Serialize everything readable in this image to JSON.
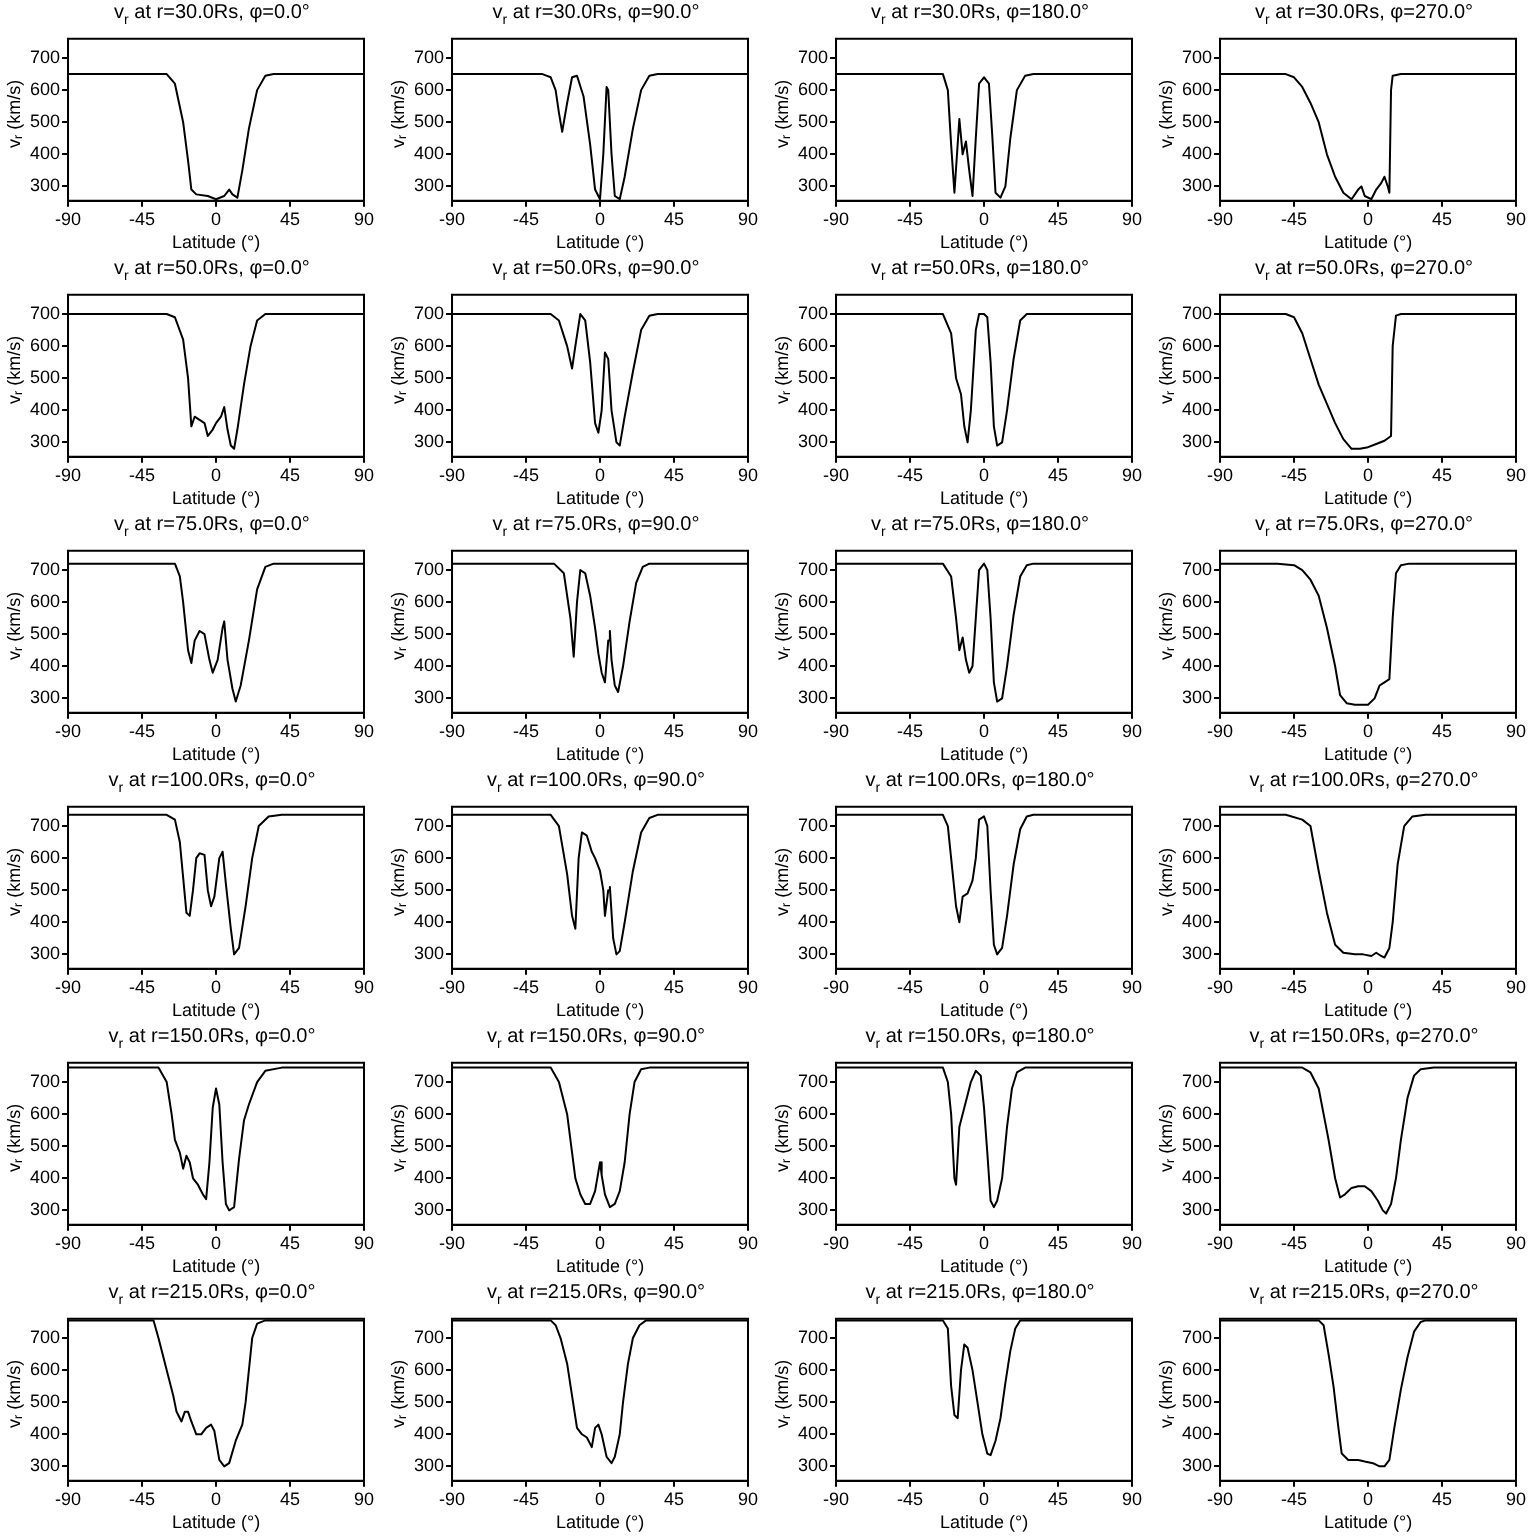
{
  "chart_data": [
    {
      "type": "line",
      "title": "v$_{r}$ at r=30.0Rs, φ=0.0°",
      "xlabel": "Latitude (°)",
      "ylabel": "v$_{r}$ (km/s)",
      "xlim": [
        -90,
        90
      ],
      "xticks": [
        -90,
        -45,
        0,
        45,
        90
      ],
      "ylim": [
        255,
        760
      ],
      "yticks": [
        300,
        400,
        500,
        600,
        700
      ],
      "color": "#000000",
      "x": [
        -90,
        -30,
        -25,
        -20,
        -17,
        -15,
        -12,
        -5,
        0,
        5,
        8,
        10,
        13,
        16,
        20,
        25,
        30,
        35,
        90
      ],
      "values": [
        650,
        650,
        620,
        500,
        380,
        290,
        275,
        270,
        260,
        270,
        290,
        275,
        265,
        350,
        480,
        600,
        645,
        650,
        650
      ]
    },
    {
      "type": "line",
      "title": "v$_{r}$ at r=30.0Rs, φ=90.0°",
      "xlabel": "Latitude (°)",
      "ylabel": "v$_{r}$ (km/s)",
      "xlim": [
        -90,
        90
      ],
      "xticks": [
        -90,
        -45,
        0,
        45,
        90
      ],
      "ylim": [
        255,
        760
      ],
      "yticks": [
        300,
        400,
        500,
        600,
        700
      ],
      "color": "#000000",
      "x": [
        -90,
        -35,
        -30,
        -27,
        -25,
        -23,
        -20,
        -17,
        -14,
        -10,
        -6,
        -3,
        0,
        2,
        4,
        5,
        7,
        9,
        12,
        15,
        20,
        25,
        30,
        35,
        90
      ],
      "values": [
        650,
        650,
        640,
        600,
        530,
        470,
        560,
        640,
        645,
        580,
        430,
        290,
        260,
        400,
        610,
        600,
        400,
        270,
        260,
        330,
        480,
        600,
        645,
        650,
        650
      ]
    },
    {
      "type": "line",
      "title": "v$_{r}$ at r=30.0Rs, φ=180.0°",
      "xlabel": "Latitude (°)",
      "ylabel": "v$_{r}$ (km/s)",
      "xlim": [
        -90,
        90
      ],
      "xticks": [
        -90,
        -45,
        0,
        45,
        90
      ],
      "ylim": [
        255,
        760
      ],
      "yticks": [
        300,
        400,
        500,
        600,
        700
      ],
      "color": "#000000",
      "x": [
        -90,
        -25,
        -22,
        -20,
        -18,
        -15,
        -13,
        -11,
        -9,
        -7,
        -5,
        -3,
        0,
        3,
        5,
        7,
        10,
        13,
        16,
        20,
        25,
        30,
        90
      ],
      "values": [
        650,
        650,
        600,
        430,
        280,
        510,
        400,
        440,
        350,
        270,
        450,
        620,
        640,
        620,
        460,
        280,
        265,
        300,
        450,
        600,
        645,
        650,
        650
      ]
    },
    {
      "type": "line",
      "title": "v$_{r}$ at r=30.0Rs, φ=270.0°",
      "xlabel": "Latitude (°)",
      "ylabel": "v$_{r}$ (km/s)",
      "xlim": [
        -90,
        90
      ],
      "xticks": [
        -90,
        -45,
        0,
        45,
        90
      ],
      "ylim": [
        255,
        760
      ],
      "yticks": [
        300,
        400,
        500,
        600,
        700
      ],
      "color": "#000000",
      "x": [
        -90,
        -50,
        -45,
        -40,
        -35,
        -30,
        -25,
        -20,
        -15,
        -10,
        -6,
        -4,
        -2,
        2,
        5,
        8,
        10,
        12,
        13,
        14,
        15,
        20,
        90
      ],
      "values": [
        650,
        650,
        640,
        610,
        560,
        500,
        400,
        330,
        280,
        260,
        290,
        300,
        270,
        260,
        290,
        310,
        330,
        300,
        280,
        600,
        645,
        650,
        650
      ]
    },
    {
      "type": "line",
      "title": "v$_{r}$ at r=50.0Rs, φ=0.0°",
      "xlabel": "Latitude (°)",
      "ylabel": "v$_{r}$ (km/s)",
      "xlim": [
        -90,
        90
      ],
      "xticks": [
        -90,
        -45,
        0,
        45,
        90
      ],
      "ylim": [
        255,
        760
      ],
      "yticks": [
        300,
        400,
        500,
        600,
        700
      ],
      "color": "#000000",
      "x": [
        -90,
        -30,
        -25,
        -20,
        -17,
        -15,
        -13,
        -10,
        -7,
        -5,
        -2,
        0,
        3,
        5,
        7,
        9,
        11,
        13,
        17,
        21,
        25,
        30,
        90
      ],
      "values": [
        700,
        700,
        690,
        620,
        500,
        350,
        380,
        370,
        360,
        320,
        340,
        360,
        380,
        410,
        340,
        290,
        280,
        340,
        480,
        600,
        680,
        700,
        700
      ]
    },
    {
      "type": "line",
      "title": "v$_{r}$ at r=50.0Rs, φ=90.0°",
      "xlabel": "Latitude (°)",
      "ylabel": "v$_{r}$ (km/s)",
      "xlim": [
        -90,
        90
      ],
      "xticks": [
        -90,
        -45,
        0,
        45,
        90
      ],
      "ylim": [
        255,
        760
      ],
      "yticks": [
        300,
        400,
        500,
        600,
        700
      ],
      "color": "#000000",
      "x": [
        -90,
        -30,
        -25,
        -20,
        -17,
        -15,
        -12,
        -9,
        -6,
        -3,
        -1,
        1,
        3,
        5,
        7,
        10,
        12,
        15,
        20,
        25,
        30,
        35,
        90
      ],
      "values": [
        700,
        700,
        680,
        600,
        530,
        600,
        700,
        680,
        550,
        360,
        330,
        400,
        580,
        560,
        400,
        300,
        290,
        380,
        520,
        650,
        695,
        700,
        700
      ]
    },
    {
      "type": "line",
      "title": "v$_{r}$ at r=50.0Rs, φ=180.0°",
      "xlabel": "Latitude (°)",
      "ylabel": "v$_{r}$ (km/s)",
      "xlim": [
        -90,
        90
      ],
      "xticks": [
        -90,
        -45,
        0,
        45,
        90
      ],
      "ylim": [
        255,
        760
      ],
      "yticks": [
        300,
        400,
        500,
        600,
        700
      ],
      "color": "#000000",
      "x": [
        -90,
        -25,
        -20,
        -17,
        -14,
        -12,
        -10,
        -8,
        -5,
        -3,
        0,
        2,
        4,
        6,
        8,
        11,
        14,
        18,
        22,
        26,
        90
      ],
      "values": [
        700,
        700,
        640,
        500,
        450,
        350,
        300,
        400,
        650,
        700,
        700,
        690,
        550,
        350,
        290,
        300,
        400,
        560,
        680,
        700,
        700
      ]
    },
    {
      "type": "line",
      "title": "v$_{r}$ at r=50.0Rs, φ=270.0°",
      "xlabel": "Latitude (°)",
      "ylabel": "v$_{r}$ (km/s)",
      "xlim": [
        -90,
        90
      ],
      "xticks": [
        -90,
        -45,
        0,
        45,
        90
      ],
      "ylim": [
        255,
        760
      ],
      "yticks": [
        300,
        400,
        500,
        600,
        700
      ],
      "color": "#000000",
      "x": [
        -90,
        -50,
        -45,
        -40,
        -35,
        -30,
        -25,
        -20,
        -15,
        -10,
        -5,
        0,
        5,
        10,
        14,
        15,
        17,
        20,
        90
      ],
      "values": [
        700,
        700,
        690,
        640,
        560,
        480,
        420,
        360,
        310,
        280,
        280,
        285,
        295,
        305,
        320,
        600,
        695,
        700,
        700
      ]
    },
    {
      "type": "line",
      "title": "v$_{r}$ at r=75.0Rs, φ=0.0°",
      "xlabel": "Latitude (°)",
      "ylabel": "v$_{r}$ (km/s)",
      "xlim": [
        -90,
        90
      ],
      "xticks": [
        -90,
        -45,
        0,
        45,
        90
      ],
      "ylim": [
        255,
        760
      ],
      "yticks": [
        300,
        400,
        500,
        600,
        700
      ],
      "color": "#000000",
      "x": [
        -90,
        -25,
        -22,
        -20,
        -17,
        -15,
        -13,
        -10,
        -7,
        -4,
        -2,
        1,
        4,
        5,
        7,
        10,
        12,
        15,
        20,
        25,
        30,
        35,
        90
      ],
      "values": [
        720,
        720,
        680,
        600,
        450,
        410,
        480,
        510,
        500,
        420,
        380,
        420,
        520,
        540,
        420,
        330,
        290,
        340,
        480,
        640,
        710,
        720,
        720
      ]
    },
    {
      "type": "line",
      "title": "v$_{r}$ at r=75.0Rs, φ=90.0°",
      "xlabel": "Latitude (°)",
      "ylabel": "v$_{r}$ (km/s)",
      "xlim": [
        -90,
        90
      ],
      "xticks": [
        -90,
        -45,
        0,
        45,
        90
      ],
      "ylim": [
        255,
        760
      ],
      "yticks": [
        300,
        400,
        500,
        600,
        700
      ],
      "color": "#000000",
      "x": [
        -90,
        -28,
        -22,
        -18,
        -16,
        -14,
        -12,
        -9,
        -6,
        -3,
        -1,
        1,
        3,
        5,
        6,
        7,
        9,
        11,
        14,
        18,
        22,
        26,
        30,
        90
      ],
      "values": [
        720,
        720,
        690,
        550,
        430,
        600,
        700,
        690,
        620,
        520,
        440,
        380,
        350,
        480,
        510,
        420,
        340,
        320,
        400,
        540,
        660,
        710,
        720,
        720
      ]
    },
    {
      "type": "line",
      "title": "v$_{r}$ at r=75.0Rs, φ=180.0°",
      "xlabel": "Latitude (°)",
      "ylabel": "v$_{r}$ (km/s)",
      "xlim": [
        -90,
        90
      ],
      "xticks": [
        -90,
        -45,
        0,
        45,
        90
      ],
      "ylim": [
        255,
        760
      ],
      "yticks": [
        300,
        400,
        500,
        600,
        700
      ],
      "color": "#000000",
      "x": [
        -90,
        -25,
        -20,
        -17,
        -15,
        -13,
        -11,
        -9,
        -7,
        -5,
        -3,
        0,
        2,
        4,
        6,
        8,
        11,
        14,
        18,
        22,
        26,
        30,
        90
      ],
      "values": [
        720,
        720,
        680,
        550,
        450,
        490,
        420,
        380,
        400,
        550,
        700,
        720,
        700,
        550,
        350,
        290,
        300,
        400,
        560,
        680,
        715,
        720,
        720
      ]
    },
    {
      "type": "line",
      "title": "v$_{r}$ at r=75.0Rs, φ=270.0°",
      "xlabel": "Latitude (°)",
      "ylabel": "v$_{r}$ (km/s)",
      "xlim": [
        -90,
        90
      ],
      "xticks": [
        -90,
        -45,
        0,
        45,
        90
      ],
      "ylim": [
        255,
        760
      ],
      "yticks": [
        300,
        400,
        500,
        600,
        700
      ],
      "color": "#000000",
      "x": [
        -90,
        -55,
        -45,
        -40,
        -35,
        -30,
        -25,
        -20,
        -17,
        -13,
        -8,
        0,
        4,
        7,
        10,
        13,
        15,
        17,
        20,
        25,
        90
      ],
      "values": [
        720,
        720,
        715,
        700,
        670,
        620,
        520,
        400,
        310,
        285,
        280,
        280,
        300,
        340,
        350,
        360,
        550,
        690,
        715,
        720,
        720
      ]
    },
    {
      "type": "line",
      "title": "v$_{r}$ at r=100.0Rs, φ=0.0°",
      "xlabel": "Latitude (°)",
      "ylabel": "v$_{r}$ (km/s)",
      "xlim": [
        -90,
        90
      ],
      "xticks": [
        -90,
        -45,
        0,
        45,
        90
      ],
      "ylim": [
        255,
        760
      ],
      "yticks": [
        300,
        400,
        500,
        600,
        700
      ],
      "color": "#000000",
      "x": [
        -90,
        -30,
        -25,
        -22,
        -20,
        -18,
        -16,
        -14,
        -12,
        -10,
        -7,
        -5,
        -3,
        -1,
        2,
        4,
        6,
        9,
        11,
        14,
        18,
        22,
        26,
        32,
        40,
        90
      ],
      "values": [
        735,
        735,
        720,
        650,
        540,
        430,
        420,
        500,
        600,
        615,
        610,
        500,
        450,
        480,
        600,
        620,
        520,
        380,
        300,
        320,
        450,
        600,
        700,
        730,
        735,
        735
      ]
    },
    {
      "type": "line",
      "title": "v$_{r}$ at r=100.0Rs, φ=90.0°",
      "xlabel": "Latitude (°)",
      "ylabel": "v$_{r}$ (km/s)",
      "xlim": [
        -90,
        90
      ],
      "xticks": [
        -90,
        -45,
        0,
        45,
        90
      ],
      "ylim": [
        255,
        760
      ],
      "yticks": [
        300,
        400,
        500,
        600,
        700
      ],
      "color": "#000000",
      "x": [
        -90,
        -30,
        -25,
        -20,
        -17,
        -15,
        -13,
        -11,
        -8,
        -5,
        -3,
        0,
        2,
        3,
        5,
        6,
        8,
        10,
        12,
        15,
        20,
        25,
        30,
        35,
        90
      ],
      "values": [
        735,
        735,
        700,
        550,
        420,
        380,
        600,
        680,
        670,
        620,
        600,
        560,
        500,
        420,
        500,
        510,
        350,
        300,
        310,
        400,
        560,
        680,
        725,
        735,
        735
      ]
    },
    {
      "type": "line",
      "title": "v$_{r}$ at r=100.0Rs, φ=180.0°",
      "xlabel": "Latitude (°)",
      "ylabel": "v$_{r}$ (km/s)",
      "xlim": [
        -90,
        90
      ],
      "xticks": [
        -90,
        -45,
        0,
        45,
        90
      ],
      "ylim": [
        255,
        760
      ],
      "yticks": [
        300,
        400,
        500,
        600,
        700
      ],
      "color": "#000000",
      "x": [
        -90,
        -25,
        -22,
        -20,
        -17,
        -15,
        -13,
        -10,
        -7,
        -5,
        -3,
        0,
        2,
        4,
        6,
        8,
        11,
        14,
        18,
        22,
        26,
        30,
        90
      ],
      "values": [
        735,
        735,
        700,
        600,
        450,
        400,
        480,
        490,
        530,
        600,
        720,
        730,
        700,
        500,
        330,
        300,
        320,
        420,
        580,
        690,
        730,
        735,
        735
      ]
    },
    {
      "type": "line",
      "title": "v$_{r}$ at r=100.0Rs, φ=270.0°",
      "xlabel": "Latitude (°)",
      "ylabel": "v$_{r}$ (km/s)",
      "xlim": [
        -90,
        90
      ],
      "xticks": [
        -90,
        -45,
        0,
        45,
        90
      ],
      "ylim": [
        255,
        760
      ],
      "yticks": [
        300,
        400,
        500,
        600,
        700
      ],
      "color": "#000000",
      "x": [
        -90,
        -50,
        -40,
        -35,
        -30,
        -25,
        -20,
        -15,
        -8,
        -3,
        2,
        5,
        8,
        10,
        13,
        15,
        18,
        22,
        27,
        35,
        90
      ],
      "values": [
        735,
        735,
        720,
        700,
        560,
        430,
        330,
        305,
        300,
        300,
        295,
        305,
        295,
        290,
        320,
        400,
        580,
        700,
        730,
        735,
        735
      ]
    },
    {
      "type": "line",
      "title": "v$_{r}$ at r=150.0Rs, φ=0.0°",
      "xlabel": "Latitude (°)",
      "ylabel": "v$_{r}$ (km/s)",
      "xlim": [
        -90,
        90
      ],
      "xticks": [
        -90,
        -45,
        0,
        45,
        90
      ],
      "ylim": [
        255,
        760
      ],
      "yticks": [
        300,
        400,
        500,
        600,
        700
      ],
      "color": "#000000",
      "x": [
        -90,
        -35,
        -30,
        -27,
        -25,
        -22,
        -20,
        -18,
        -16,
        -14,
        -11,
        -8,
        -6,
        -4,
        -2,
        0,
        2,
        4,
        6,
        8,
        11,
        14,
        17,
        20,
        25,
        30,
        40,
        90
      ],
      "values": [
        745,
        745,
        700,
        600,
        520,
        480,
        430,
        470,
        450,
        400,
        380,
        350,
        335,
        450,
        620,
        680,
        630,
        450,
        320,
        300,
        310,
        460,
        580,
        630,
        700,
        735,
        745,
        745
      ]
    },
    {
      "type": "line",
      "title": "v$_{r}$ at r=150.0Rs, φ=90.0°",
      "xlabel": "Latitude (°)",
      "ylabel": "v$_{r}$ (km/s)",
      "xlim": [
        -90,
        90
      ],
      "xticks": [
        -90,
        -45,
        0,
        45,
        90
      ],
      "ylim": [
        255,
        760
      ],
      "yticks": [
        300,
        400,
        500,
        600,
        700
      ],
      "color": "#000000",
      "x": [
        -90,
        -30,
        -25,
        -20,
        -17,
        -15,
        -12,
        -9,
        -6,
        -3,
        -1,
        0,
        1,
        3,
        6,
        9,
        12,
        15,
        18,
        21,
        25,
        30,
        90
      ],
      "values": [
        745,
        745,
        700,
        600,
        480,
        400,
        350,
        320,
        320,
        360,
        420,
        450,
        410,
        350,
        310,
        320,
        360,
        450,
        600,
        700,
        740,
        745,
        745
      ]
    },
    {
      "type": "line",
      "title": "v$_{r}$ at r=150.0Rs, φ=180.0°",
      "xlabel": "Latitude (°)",
      "ylabel": "v$_{r}$ (km/s)",
      "xlim": [
        -90,
        90
      ],
      "xticks": [
        -90,
        -45,
        0,
        45,
        90
      ],
      "ylim": [
        255,
        760
      ],
      "yticks": [
        300,
        400,
        500,
        600,
        700
      ],
      "color": "#000000",
      "x": [
        -90,
        -25,
        -22,
        -20,
        -18,
        -17,
        -15,
        -12,
        -10,
        -8,
        -5,
        -2,
        0,
        2,
        4,
        6,
        8,
        11,
        14,
        17,
        20,
        25,
        90
      ],
      "values": [
        745,
        745,
        700,
        600,
        400,
        380,
        560,
        620,
        660,
        700,
        735,
        720,
        620,
        480,
        330,
        310,
        330,
        400,
        560,
        680,
        730,
        745,
        745
      ]
    },
    {
      "type": "line",
      "title": "v$_{r}$ at r=150.0Rs, φ=270.0°",
      "xlabel": "Latitude (°)",
      "ylabel": "v$_{r}$ (km/s)",
      "xlim": [
        -90,
        90
      ],
      "xticks": [
        -90,
        -45,
        0,
        45,
        90
      ],
      "ylim": [
        255,
        760
      ],
      "yticks": [
        300,
        400,
        500,
        600,
        700
      ],
      "color": "#000000",
      "x": [
        -90,
        -40,
        -35,
        -30,
        -27,
        -24,
        -20,
        -17,
        -14,
        -10,
        -6,
        -2,
        2,
        6,
        9,
        11,
        14,
        17,
        20,
        24,
        28,
        32,
        40,
        90
      ],
      "values": [
        745,
        745,
        730,
        680,
        600,
        520,
        400,
        340,
        350,
        370,
        375,
        375,
        360,
        330,
        300,
        290,
        320,
        400,
        520,
        650,
        720,
        740,
        745,
        745
      ]
    },
    {
      "type": "line",
      "title": "v$_{r}$ at r=215.0Rs, φ=0.0°",
      "xlabel": "Latitude (°)",
      "ylabel": "v$_{r}$ (km/s)",
      "xlim": [
        -90,
        90
      ],
      "xticks": [
        -90,
        -45,
        0,
        45,
        90
      ],
      "ylim": [
        255,
        760
      ],
      "yticks": [
        300,
        400,
        500,
        600,
        700
      ],
      "color": "#000000",
      "x": [
        -90,
        -38,
        -35,
        -32,
        -29,
        -26,
        -24,
        -21,
        -19,
        -17,
        -15,
        -12,
        -9,
        -6,
        -3,
        -1,
        2,
        5,
        8,
        12,
        16,
        18,
        20,
        22,
        25,
        30,
        90
      ],
      "values": [
        755,
        755,
        700,
        640,
        580,
        520,
        470,
        440,
        470,
        470,
        440,
        400,
        400,
        420,
        430,
        410,
        320,
        300,
        310,
        380,
        430,
        500,
        600,
        700,
        745,
        755,
        755
      ]
    },
    {
      "type": "line",
      "title": "v$_{r}$ at r=215.0Rs, φ=90.0°",
      "xlabel": "Latitude (°)",
      "ylabel": "v$_{r}$ (km/s)",
      "xlim": [
        -90,
        90
      ],
      "xticks": [
        -90,
        -45,
        0,
        45,
        90
      ],
      "ylim": [
        255,
        760
      ],
      "yticks": [
        300,
        400,
        500,
        600,
        700
      ],
      "color": "#000000",
      "x": [
        -90,
        -30,
        -27,
        -24,
        -20,
        -17,
        -14,
        -11,
        -8,
        -5,
        -3,
        -1,
        1,
        4,
        7,
        9,
        12,
        14,
        17,
        20,
        24,
        28,
        90
      ],
      "values": [
        755,
        755,
        740,
        700,
        620,
        520,
        420,
        400,
        390,
        360,
        420,
        430,
        400,
        330,
        310,
        330,
        400,
        500,
        620,
        700,
        740,
        755,
        755
      ]
    },
    {
      "type": "line",
      "title": "v$_{r}$ at r=215.0Rs, φ=180.0°",
      "xlabel": "Latitude (°)",
      "ylabel": "v$_{r}$ (km/s)",
      "xlim": [
        -90,
        90
      ],
      "xticks": [
        -90,
        -45,
        0,
        45,
        90
      ],
      "ylim": [
        255,
        760
      ],
      "yticks": [
        300,
        400,
        500,
        600,
        700
      ],
      "color": "#000000",
      "x": [
        -90,
        -25,
        -22,
        -20,
        -18,
        -16,
        -14,
        -12,
        -10,
        -7,
        -4,
        -1,
        2,
        4,
        7,
        10,
        13,
        16,
        19,
        22,
        90
      ],
      "values": [
        755,
        755,
        730,
        550,
        460,
        450,
        600,
        680,
        670,
        600,
        500,
        400,
        340,
        335,
        380,
        450,
        560,
        660,
        730,
        755,
        755
      ]
    },
    {
      "type": "line",
      "title": "v$_{r}$ at r=215.0Rs, φ=270.0°",
      "xlabel": "Latitude (°)",
      "ylabel": "v$_{r}$ (km/s)",
      "xlim": [
        -90,
        90
      ],
      "xticks": [
        -90,
        -45,
        0,
        45,
        90
      ],
      "ylim": [
        255,
        760
      ],
      "yticks": [
        300,
        400,
        500,
        600,
        700
      ],
      "color": "#000000",
      "x": [
        -90,
        -30,
        -27,
        -24,
        -21,
        -18,
        -16,
        -12,
        -6,
        -2,
        3,
        7,
        10,
        13,
        16,
        20,
        24,
        28,
        32,
        35,
        90
      ],
      "values": [
        755,
        755,
        740,
        650,
        550,
        420,
        340,
        320,
        320,
        315,
        310,
        300,
        300,
        320,
        420,
        540,
        640,
        720,
        750,
        755,
        755
      ]
    }
  ]
}
